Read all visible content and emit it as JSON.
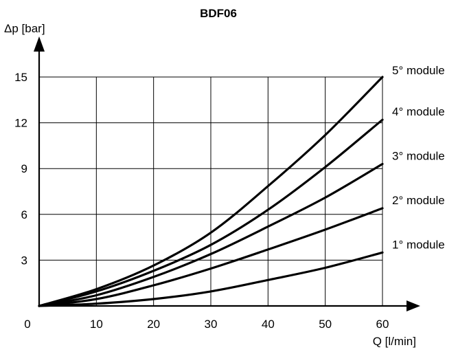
{
  "chart_data": {
    "type": "line",
    "title": "BDF06",
    "xlabel": "Q [l/min]",
    "ylabel": "Δp [bar]",
    "origin_label": "0",
    "xlim": [
      0,
      60
    ],
    "ylim": [
      0,
      15
    ],
    "xticks": [
      10,
      20,
      30,
      40,
      50,
      60
    ],
    "yticks": [
      3,
      6,
      9,
      12,
      15
    ],
    "grid": true,
    "x": [
      0,
      10,
      20,
      30,
      40,
      50,
      60
    ],
    "series": [
      {
        "name": "1° module",
        "values": [
          0,
          0.15,
          0.45,
          0.95,
          1.7,
          2.5,
          3.5
        ]
      },
      {
        "name": "2° module",
        "values": [
          0,
          0.45,
          1.35,
          2.45,
          3.7,
          5.0,
          6.4
        ]
      },
      {
        "name": "3° module",
        "values": [
          0,
          0.7,
          1.9,
          3.4,
          5.2,
          7.1,
          9.3
        ]
      },
      {
        "name": "4° module",
        "values": [
          0,
          0.95,
          2.3,
          4.0,
          6.3,
          9.1,
          12.2
        ]
      },
      {
        "name": "5° module",
        "values": [
          0,
          1.1,
          2.65,
          4.8,
          7.85,
          11.2,
          15.0
        ]
      }
    ]
  }
}
